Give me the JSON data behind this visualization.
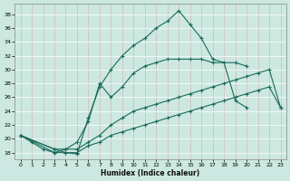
{
  "xlabel": "Humidex (Indice chaleur)",
  "bg_color": "#cce8e0",
  "line_color": "#1a6b5a",
  "grid_color": "#c0d8d0",
  "xlim": [
    -0.5,
    23.5
  ],
  "ylim": [
    17.0,
    39.5
  ],
  "yticks": [
    18,
    20,
    22,
    24,
    26,
    28,
    30,
    32,
    34,
    36,
    38
  ],
  "xticks": [
    0,
    1,
    2,
    3,
    4,
    5,
    6,
    7,
    8,
    9,
    10,
    11,
    12,
    13,
    14,
    15,
    16,
    17,
    18,
    19,
    20,
    21,
    22,
    23
  ],
  "series": [
    {
      "x": [
        0,
        1,
        2,
        3,
        4,
        5,
        6,
        7,
        8,
        9,
        10,
        11,
        12,
        13,
        14,
        15,
        16,
        17,
        18,
        19,
        20
      ],
      "y": [
        20.5,
        19.5,
        18.5,
        18.0,
        18.0,
        17.8,
        23.0,
        27.5,
        30.0,
        32.0,
        33.5,
        34.5,
        36.0,
        37.0,
        38.5,
        36.5,
        34.5,
        31.5,
        31.0,
        25.5,
        24.5
      ]
    },
    {
      "x": [
        0,
        3,
        4,
        5,
        6,
        7,
        8,
        9,
        10,
        11,
        12,
        13,
        14,
        15,
        16,
        17,
        19,
        20
      ],
      "y": [
        20.5,
        18.0,
        18.5,
        19.5,
        22.5,
        28.0,
        26.0,
        27.5,
        29.5,
        30.5,
        31.0,
        31.5,
        31.5,
        31.5,
        31.5,
        31.0,
        31.0,
        30.5
      ]
    },
    {
      "x": [
        0,
        3,
        4,
        5,
        6,
        7,
        8,
        9,
        10,
        11,
        12,
        13,
        14,
        15,
        16,
        17,
        18,
        19,
        20,
        21,
        22,
        23
      ],
      "y": [
        20.5,
        18.5,
        18.5,
        18.5,
        19.5,
        20.5,
        22.0,
        23.0,
        24.0,
        24.5,
        25.0,
        25.5,
        26.0,
        26.5,
        27.0,
        27.5,
        28.0,
        28.5,
        29.0,
        29.5,
        30.0,
        24.5
      ]
    },
    {
      "x": [
        0,
        3,
        4,
        5,
        6,
        7,
        8,
        9,
        10,
        11,
        12,
        13,
        14,
        15,
        16,
        17,
        18,
        19,
        20,
        21,
        22,
        23
      ],
      "y": [
        20.5,
        18.5,
        18.0,
        18.0,
        19.0,
        19.5,
        20.5,
        21.0,
        21.5,
        22.0,
        22.5,
        23.0,
        23.5,
        24.0,
        24.5,
        25.0,
        25.5,
        26.0,
        26.5,
        27.0,
        27.5,
        24.5
      ]
    }
  ]
}
